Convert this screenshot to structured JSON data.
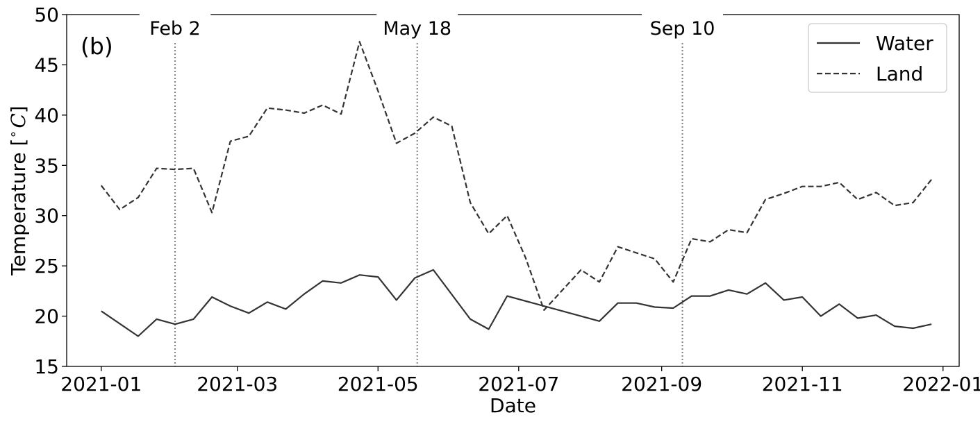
{
  "chart_data": {
    "type": "line",
    "panel_label": "(b)",
    "xlabel": "Date",
    "ylabel": "Temperature [$^\\circ C$]",
    "ylabel_parts": {
      "prefix": "Temperature [",
      "degree": "∘",
      "unit": "C",
      "suffix": "]"
    },
    "ylim": [
      15,
      50
    ],
    "xlim": [
      "2020-12-17",
      "2022-01-08"
    ],
    "y_ticks": [
      15,
      20,
      25,
      30,
      35,
      40,
      45,
      50
    ],
    "x_ticks": [
      "2021-01",
      "2021-03",
      "2021-05",
      "2021-07",
      "2021-09",
      "2021-11",
      "2022-01"
    ],
    "grid": false,
    "legend_position": "top-right",
    "colors": {
      "line": "#333333",
      "event": "#808080",
      "axis": "#000000"
    },
    "events": [
      {
        "date": "2021-02-02",
        "label": "Feb 2"
      },
      {
        "date": "2021-05-18",
        "label": "May 18"
      },
      {
        "date": "2021-09-10",
        "label": "Sep 10"
      }
    ],
    "series": [
      {
        "name": "Water",
        "style": "solid",
        "points": [
          [
            "2021-01-01",
            20.5
          ],
          [
            "2021-01-17",
            18.0
          ],
          [
            "2021-01-25",
            19.7
          ],
          [
            "2021-02-02",
            19.2
          ],
          [
            "2021-02-10",
            19.7
          ],
          [
            "2021-02-18",
            21.9
          ],
          [
            "2021-02-26",
            21.0
          ],
          [
            "2021-03-06",
            20.3
          ],
          [
            "2021-03-14",
            21.4
          ],
          [
            "2021-03-22",
            20.7
          ],
          [
            "2021-03-30",
            22.2
          ],
          [
            "2021-04-07",
            23.5
          ],
          [
            "2021-04-15",
            23.3
          ],
          [
            "2021-04-23",
            24.1
          ],
          [
            "2021-05-01",
            23.9
          ],
          [
            "2021-05-09",
            21.6
          ],
          [
            "2021-05-17",
            23.8
          ],
          [
            "2021-05-25",
            24.6
          ],
          [
            "2021-06-10",
            19.7
          ],
          [
            "2021-06-18",
            18.7
          ],
          [
            "2021-06-26",
            22.0
          ],
          [
            "2021-07-12",
            21.0
          ],
          [
            "2021-08-05",
            19.5
          ],
          [
            "2021-08-13",
            21.3
          ],
          [
            "2021-08-21",
            21.3
          ],
          [
            "2021-08-29",
            20.9
          ],
          [
            "2021-09-06",
            20.8
          ],
          [
            "2021-09-14",
            22.0
          ],
          [
            "2021-09-22",
            22.0
          ],
          [
            "2021-09-30",
            22.6
          ],
          [
            "2021-10-08",
            22.2
          ],
          [
            "2021-10-16",
            23.3
          ],
          [
            "2021-10-24",
            21.6
          ],
          [
            "2021-11-01",
            21.9
          ],
          [
            "2021-11-09",
            20.0
          ],
          [
            "2021-11-17",
            21.2
          ],
          [
            "2021-11-25",
            19.8
          ],
          [
            "2021-12-03",
            20.1
          ],
          [
            "2021-12-11",
            19.0
          ],
          [
            "2021-12-19",
            18.8
          ],
          [
            "2021-12-27",
            19.2
          ]
        ]
      },
      {
        "name": "Land",
        "style": "dashed",
        "points": [
          [
            "2021-01-01",
            33.0
          ],
          [
            "2021-01-09",
            30.6
          ],
          [
            "2021-01-17",
            31.8
          ],
          [
            "2021-01-25",
            34.7
          ],
          [
            "2021-02-02",
            34.6
          ],
          [
            "2021-02-10",
            34.7
          ],
          [
            "2021-02-18",
            30.3
          ],
          [
            "2021-02-26",
            37.4
          ],
          [
            "2021-03-06",
            37.9
          ],
          [
            "2021-03-14",
            40.7
          ],
          [
            "2021-03-22",
            40.5
          ],
          [
            "2021-03-30",
            40.2
          ],
          [
            "2021-04-07",
            41.0
          ],
          [
            "2021-04-15",
            40.1
          ],
          [
            "2021-04-23",
            47.3
          ],
          [
            "2021-05-01",
            42.4
          ],
          [
            "2021-05-09",
            37.2
          ],
          [
            "2021-05-17",
            38.2
          ],
          [
            "2021-05-25",
            39.8
          ],
          [
            "2021-06-02",
            38.9
          ],
          [
            "2021-06-10",
            31.3
          ],
          [
            "2021-06-18",
            28.2
          ],
          [
            "2021-06-26",
            30.0
          ],
          [
            "2021-07-04",
            25.8
          ],
          [
            "2021-07-12",
            20.6
          ],
          [
            "2021-07-28",
            24.6
          ],
          [
            "2021-08-05",
            23.4
          ],
          [
            "2021-08-13",
            26.9
          ],
          [
            "2021-08-29",
            25.7
          ],
          [
            "2021-09-06",
            23.4
          ],
          [
            "2021-09-14",
            27.7
          ],
          [
            "2021-09-22",
            27.4
          ],
          [
            "2021-09-30",
            28.6
          ],
          [
            "2021-10-08",
            28.3
          ],
          [
            "2021-10-16",
            31.6
          ],
          [
            "2021-10-24",
            32.2
          ],
          [
            "2021-11-01",
            32.9
          ],
          [
            "2021-11-09",
            32.9
          ],
          [
            "2021-11-17",
            33.3
          ],
          [
            "2021-11-25",
            31.6
          ],
          [
            "2021-12-03",
            32.3
          ],
          [
            "2021-12-11",
            31.0
          ],
          [
            "2021-12-19",
            31.3
          ],
          [
            "2021-12-27",
            33.6
          ]
        ]
      }
    ]
  }
}
